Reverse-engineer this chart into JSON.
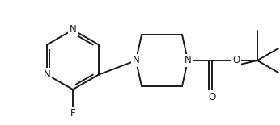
{
  "background_color": "#ffffff",
  "line_color": "#1a1a1a",
  "line_width": 1.4,
  "font_size": 8.5,
  "figsize": [
    3.46,
    1.55
  ],
  "dpi": 100,
  "xlim": [
    0,
    346
  ],
  "ylim": [
    0,
    155
  ]
}
